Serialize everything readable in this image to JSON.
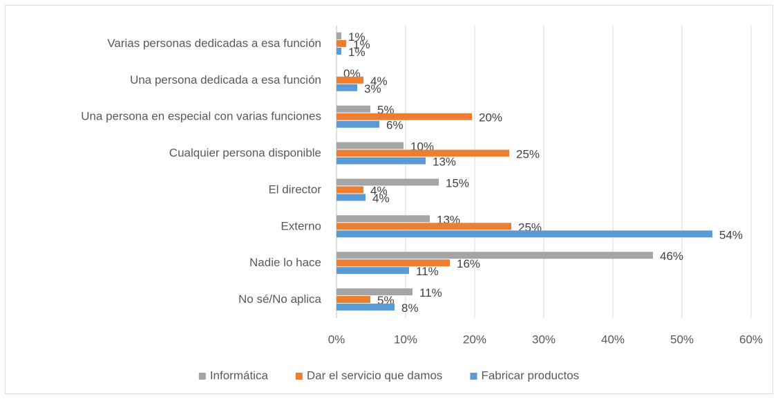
{
  "chart_data": {
    "type": "hbar",
    "categories": [
      "Varias personas dedicadas a esa función",
      "Una persona dedicada a esa función",
      "Una persona en especial con varias funciones",
      "Cualquier persona disponible",
      "El director",
      "Externo",
      "Nadie lo hace",
      "No sé/No aplica"
    ],
    "series": [
      {
        "name": "Informática",
        "color": "#a5a5a5",
        "values": [
          0.7,
          0,
          4.9,
          9.7,
          14.8,
          13.5,
          45.8,
          11.0
        ],
        "value_labels": [
          "1%",
          "0%",
          "5%",
          "10%",
          "15%",
          "13%",
          "46%",
          "11%"
        ]
      },
      {
        "name": "Dar el servicio que damos",
        "color": "#ed7d31",
        "values": [
          1.4,
          3.9,
          19.6,
          25.0,
          3.9,
          25.3,
          16.4,
          4.9
        ],
        "value_labels": [
          "1%",
          "4%",
          "20%",
          "25%",
          "4%",
          "25%",
          "16%",
          "5%"
        ]
      },
      {
        "name": "Fabricar productos",
        "color": "#5b9bd5",
        "values": [
          0.7,
          3.0,
          6.2,
          12.9,
          4.2,
          54.4,
          10.5,
          8.4
        ],
        "value_labels": [
          "1%",
          "3%",
          "6%",
          "13%",
          "4%",
          "54%",
          "11%",
          "8%"
        ]
      }
    ],
    "xlim": [
      0,
      60
    ],
    "xticks": [
      {
        "value": 0,
        "label": "0%"
      },
      {
        "value": 10,
        "label": "10%"
      },
      {
        "value": 20,
        "label": "20%"
      },
      {
        "value": 30,
        "label": "30%"
      },
      {
        "value": 40,
        "label": "40%"
      },
      {
        "value": 50,
        "label": "50%"
      },
      {
        "value": 60,
        "label": "60%"
      }
    ],
    "grid": true,
    "legend": "bottom"
  }
}
